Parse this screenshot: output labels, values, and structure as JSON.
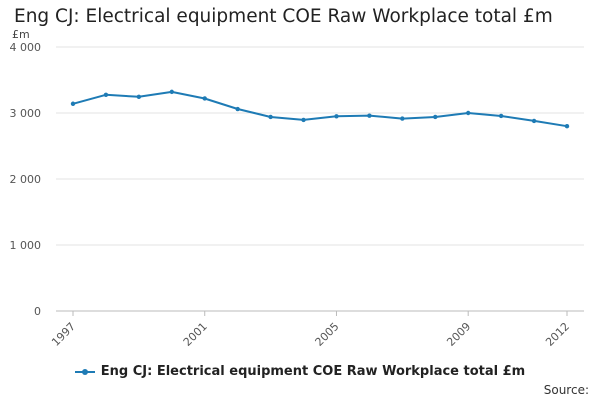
{
  "chart_data": {
    "type": "line",
    "title": "Eng CJ: Electrical equipment COE Raw Workplace total £m",
    "ylabel": "£m",
    "xlabel": "",
    "ylim": [
      0,
      4000
    ],
    "yticks": [
      0,
      1000,
      2000,
      3000,
      4000
    ],
    "ytick_labels": [
      "0",
      "1 000",
      "2 000",
      "3 000",
      "4 000"
    ],
    "xlim": [
      1997,
      2012
    ],
    "xticks": [
      1997,
      2001,
      2005,
      2009,
      2012
    ],
    "xtick_labels": [
      "1997",
      "2001",
      "2005",
      "2009",
      "2012"
    ],
    "grid": true,
    "legend_position": "bottom",
    "series": [
      {
        "name": "Eng CJ: Electrical equipment COE Raw Workplace total £m",
        "color": "#1e7bb5",
        "x": [
          1997,
          1998,
          1999,
          2000,
          2001,
          2002,
          2003,
          2004,
          2005,
          2006,
          2007,
          2008,
          2009,
          2010,
          2011,
          2012
        ],
        "values": [
          3140,
          3275,
          3245,
          3320,
          3220,
          3060,
          2940,
          2895,
          2950,
          2960,
          2915,
          2940,
          3000,
          2955,
          2880,
          2800
        ]
      }
    ],
    "source_label": "Source:"
  }
}
